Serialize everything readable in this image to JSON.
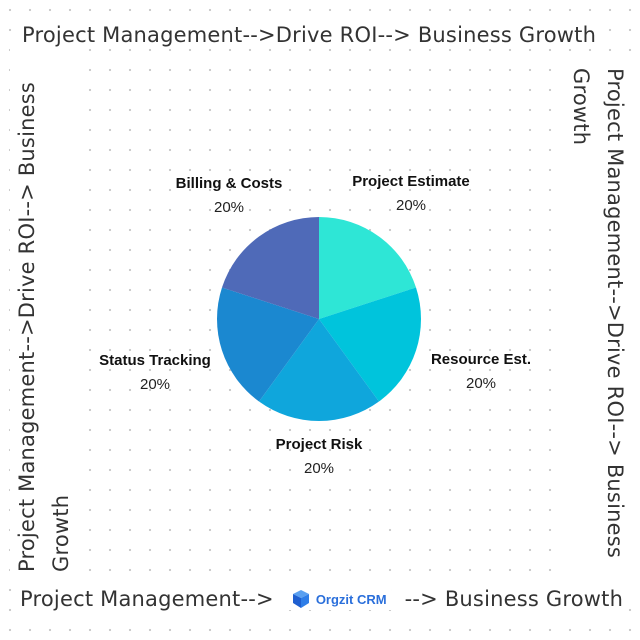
{
  "banner": {
    "top": "Project Management-->Drive ROI--> Business Growth",
    "left": "Project Management-->Drive ROI--> Business Growth",
    "right": "Project Management-->Drive ROI--> Business Growth",
    "bottom_left": "Project Management-->",
    "bottom_right": "--> Business Growth"
  },
  "logo": {
    "text": "Orgzit CRM",
    "icon": "orgzit-cube-icon"
  },
  "chart_data": {
    "type": "pie",
    "title": "",
    "slices": [
      {
        "label": "Project Estimate",
        "value": 20,
        "pct_text": "20%",
        "color": "#2ee6d6"
      },
      {
        "label": "Resource Est.",
        "value": 20,
        "pct_text": "20%",
        "color": "#00c4dc"
      },
      {
        "label": "Project Risk",
        "value": 20,
        "pct_text": "20%",
        "color": "#0fa6dc"
      },
      {
        "label": "Status Tracking",
        "value": 20,
        "pct_text": "20%",
        "color": "#1b88d0"
      },
      {
        "label": "Billing & Costs",
        "value": 20,
        "pct_text": "20%",
        "color": "#4f6ab8"
      }
    ]
  }
}
